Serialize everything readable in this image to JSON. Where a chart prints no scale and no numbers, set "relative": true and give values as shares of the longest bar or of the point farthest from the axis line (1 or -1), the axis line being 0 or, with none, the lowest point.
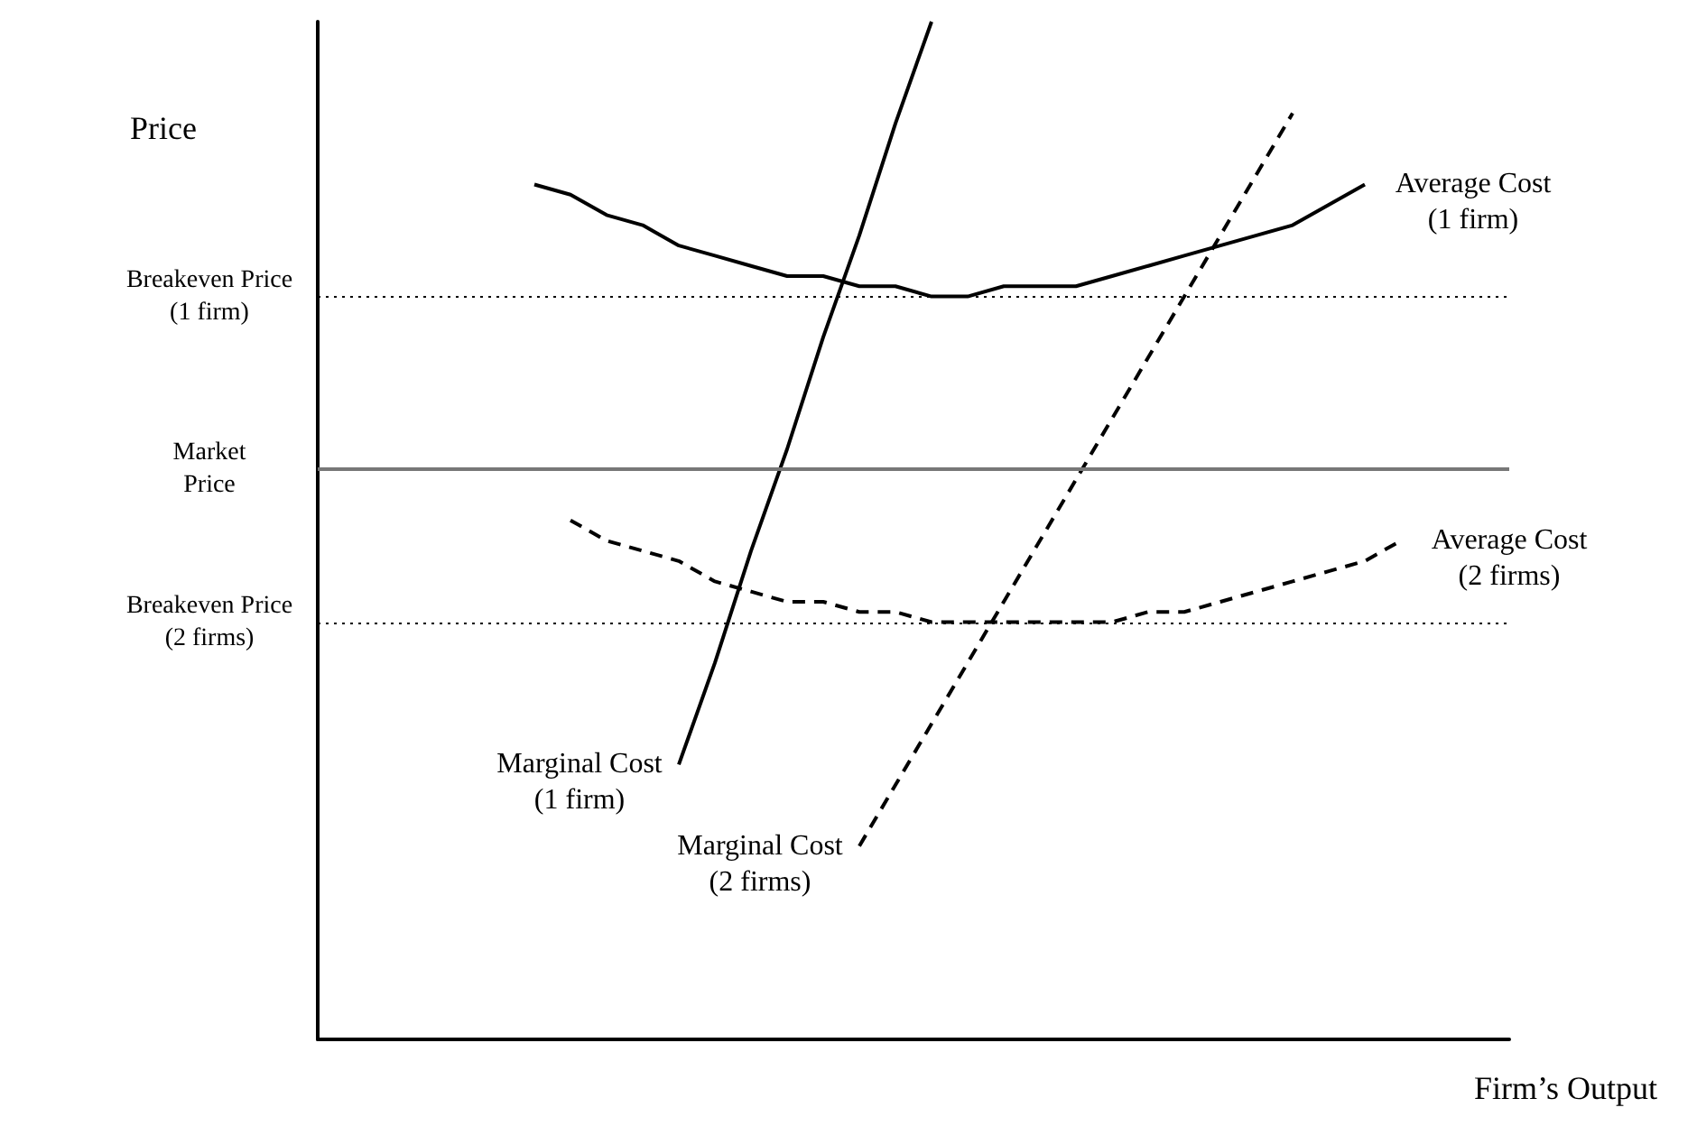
{
  "chart_data": {
    "type": "line",
    "relative": true,
    "xlabel": "Firm’s Output",
    "ylabel": "Price",
    "categories": [
      null,
      null,
      null,
      null,
      null,
      null,
      null,
      null,
      null,
      null,
      null,
      null,
      null,
      null,
      null,
      null,
      null,
      null,
      null,
      null,
      null,
      null,
      null,
      null,
      null,
      null,
      null,
      null,
      null,
      null,
      null,
      null,
      null,
      null
    ],
    "series": [
      {
        "name": "Marginal Cost\n(1 firm)",
        "color": "#000000",
        "line_style": "solid",
        "values": [
          null,
          null,
          null,
          null,
          null,
          null,
          null,
          null,
          null,
          null,
          0.27,
          0.37,
          0.48,
          0.58,
          0.69,
          0.79,
          0.9,
          1,
          null,
          null,
          null,
          null,
          null,
          null,
          null,
          null,
          null,
          null,
          null,
          null,
          null,
          null,
          null,
          null
        ]
      },
      {
        "name": "Marginal Cost\n(2 firms)",
        "color": "#000000",
        "line_style": "dashed",
        "values": [
          null,
          null,
          null,
          null,
          null,
          null,
          null,
          null,
          null,
          null,
          null,
          null,
          null,
          null,
          null,
          0.19,
          0.25,
          0.31,
          0.37,
          0.43,
          0.49,
          0.55,
          0.61,
          0.67,
          0.73,
          0.79,
          0.85,
          0.91,
          null,
          null,
          null,
          null,
          null,
          null
        ]
      },
      {
        "name": "Average Cost\n(1 firm)",
        "color": "#000000",
        "line_style": "solid",
        "values": [
          null,
          null,
          null,
          null,
          null,
          null,
          0.84,
          0.83,
          0.81,
          0.8,
          0.78,
          0.77,
          0.76,
          0.75,
          0.75,
          0.74,
          0.74,
          0.73,
          0.73,
          0.74,
          0.74,
          0.74,
          0.75,
          0.76,
          0.77,
          0.78,
          0.79,
          0.8,
          0.82,
          0.84,
          null,
          null,
          null,
          null
        ]
      },
      {
        "name": "Average Cost\n(2 firms)",
        "color": "#000000",
        "line_style": "dashed",
        "values": [
          null,
          null,
          null,
          null,
          null,
          null,
          null,
          0.51,
          0.49,
          0.48,
          0.47,
          0.45,
          0.44,
          0.43,
          0.43,
          0.42,
          0.42,
          0.41,
          0.41,
          0.41,
          0.41,
          0.41,
          0.41,
          0.42,
          0.42,
          0.43,
          0.44,
          0.45,
          0.46,
          0.47,
          0.49,
          null,
          null,
          null
        ]
      }
    ],
    "ref_lines": [
      {
        "axis": "y",
        "value": 0.73,
        "label": "Breakeven Price\n(1 firm)",
        "color": "#000000",
        "line_style": "dotted"
      },
      {
        "axis": "y",
        "value": 0.56,
        "label": "Market\nPrice",
        "color": "#777777",
        "line_style": "solid"
      },
      {
        "axis": "y",
        "value": 0.41,
        "label": "Breakeven Price\n(2 firms)",
        "color": "#000000",
        "line_style": "dotted"
      }
    ],
    "grid": false,
    "legend": false,
    "marker": "none"
  }
}
